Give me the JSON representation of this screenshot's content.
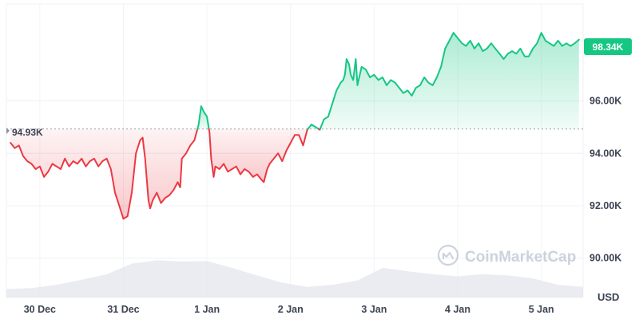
{
  "chart_data": {
    "type": "area",
    "title": "",
    "xlabel": "",
    "ylabel": "",
    "currency": "USD",
    "baseline": 94930,
    "baseline_label": "94.93K",
    "current_label": "98.34K",
    "ylim": [
      88500,
      99700
    ],
    "grid": true,
    "y_ticks": [
      {
        "value": 96000,
        "label": "96.00K"
      },
      {
        "value": 94000,
        "label": "94.00K"
      },
      {
        "value": 92000,
        "label": "92.00K"
      },
      {
        "value": 90000,
        "label": "90.00K"
      }
    ],
    "x_ticks": [
      {
        "t": 0.4,
        "label": "30 Dec"
      },
      {
        "t": 1.4,
        "label": "31 Dec"
      },
      {
        "t": 2.4,
        "label": "1 Jan"
      },
      {
        "t": 3.4,
        "label": "2 Jan"
      },
      {
        "t": 4.4,
        "label": "3 Jan"
      },
      {
        "t": 5.4,
        "label": "4 Jan"
      },
      {
        "t": 6.4,
        "label": "5 Jan"
      }
    ],
    "x_range": [
      0,
      6.9
    ],
    "series": [
      {
        "points": [
          [
            0.05,
            94400
          ],
          [
            0.1,
            94200
          ],
          [
            0.15,
            94300
          ],
          [
            0.2,
            93900
          ],
          [
            0.25,
            93700
          ],
          [
            0.3,
            93600
          ],
          [
            0.35,
            93400
          ],
          [
            0.4,
            93500
          ],
          [
            0.45,
            93100
          ],
          [
            0.5,
            93300
          ],
          [
            0.55,
            93600
          ],
          [
            0.6,
            93500
          ],
          [
            0.65,
            93400
          ],
          [
            0.7,
            93800
          ],
          [
            0.75,
            93500
          ],
          [
            0.8,
            93700
          ],
          [
            0.85,
            93600
          ],
          [
            0.9,
            93800
          ],
          [
            0.95,
            93500
          ],
          [
            1.0,
            93700
          ],
          [
            1.05,
            93800
          ],
          [
            1.1,
            93500
          ],
          [
            1.15,
            93700
          ],
          [
            1.2,
            93800
          ],
          [
            1.25,
            93400
          ],
          [
            1.3,
            92500
          ],
          [
            1.35,
            92000
          ],
          [
            1.4,
            91500
          ],
          [
            1.45,
            91600
          ],
          [
            1.5,
            92500
          ],
          [
            1.55,
            94000
          ],
          [
            1.6,
            94500
          ],
          [
            1.63,
            94600
          ],
          [
            1.66,
            93800
          ],
          [
            1.7,
            92200
          ],
          [
            1.72,
            91900
          ],
          [
            1.75,
            92200
          ],
          [
            1.8,
            92500
          ],
          [
            1.85,
            92100
          ],
          [
            1.9,
            92300
          ],
          [
            1.95,
            92400
          ],
          [
            2.0,
            92600
          ],
          [
            2.05,
            92900
          ],
          [
            2.08,
            92700
          ],
          [
            2.1,
            93800
          ],
          [
            2.15,
            94000
          ],
          [
            2.2,
            94300
          ],
          [
            2.25,
            94500
          ],
          [
            2.3,
            95100
          ],
          [
            2.33,
            95800
          ],
          [
            2.36,
            95600
          ],
          [
            2.4,
            95400
          ],
          [
            2.43,
            94800
          ],
          [
            2.45,
            93800
          ],
          [
            2.48,
            93100
          ],
          [
            2.5,
            93500
          ],
          [
            2.55,
            93400
          ],
          [
            2.6,
            93600
          ],
          [
            2.65,
            93300
          ],
          [
            2.7,
            93400
          ],
          [
            2.75,
            93500
          ],
          [
            2.8,
            93200
          ],
          [
            2.85,
            93400
          ],
          [
            2.9,
            93300
          ],
          [
            2.95,
            93100
          ],
          [
            3.0,
            93200
          ],
          [
            3.05,
            93000
          ],
          [
            3.08,
            92900
          ],
          [
            3.12,
            93400
          ],
          [
            3.15,
            93600
          ],
          [
            3.2,
            93800
          ],
          [
            3.25,
            94000
          ],
          [
            3.3,
            93700
          ],
          [
            3.35,
            94100
          ],
          [
            3.4,
            94400
          ],
          [
            3.45,
            94700
          ],
          [
            3.5,
            94700
          ],
          [
            3.55,
            94300
          ],
          [
            3.6,
            94900
          ],
          [
            3.65,
            95100
          ],
          [
            3.7,
            95000
          ],
          [
            3.75,
            94900
          ],
          [
            3.8,
            95300
          ],
          [
            3.85,
            95400
          ],
          [
            3.9,
            95900
          ],
          [
            3.95,
            96400
          ],
          [
            4.0,
            96700
          ],
          [
            4.03,
            96800
          ],
          [
            4.05,
            97000
          ],
          [
            4.07,
            97600
          ],
          [
            4.1,
            97400
          ],
          [
            4.12,
            97000
          ],
          [
            4.15,
            96800
          ],
          [
            4.18,
            97600
          ],
          [
            4.2,
            96600
          ],
          [
            4.25,
            97300
          ],
          [
            4.3,
            97200
          ],
          [
            4.35,
            96900
          ],
          [
            4.4,
            97000
          ],
          [
            4.45,
            96800
          ],
          [
            4.5,
            96900
          ],
          [
            4.55,
            96600
          ],
          [
            4.6,
            96800
          ],
          [
            4.65,
            96700
          ],
          [
            4.7,
            96500
          ],
          [
            4.75,
            96300
          ],
          [
            4.8,
            96400
          ],
          [
            4.85,
            96200
          ],
          [
            4.9,
            96500
          ],
          [
            4.95,
            96600
          ],
          [
            5.0,
            96900
          ],
          [
            5.05,
            96700
          ],
          [
            5.1,
            96600
          ],
          [
            5.15,
            96900
          ],
          [
            5.2,
            97300
          ],
          [
            5.25,
            98000
          ],
          [
            5.3,
            98300
          ],
          [
            5.35,
            98600
          ],
          [
            5.4,
            98400
          ],
          [
            5.45,
            98200
          ],
          [
            5.5,
            98100
          ],
          [
            5.55,
            98300
          ],
          [
            5.6,
            98000
          ],
          [
            5.65,
            98200
          ],
          [
            5.7,
            97900
          ],
          [
            5.75,
            98000
          ],
          [
            5.8,
            98200
          ],
          [
            5.85,
            98000
          ],
          [
            5.9,
            97800
          ],
          [
            5.95,
            97600
          ],
          [
            6.0,
            97800
          ],
          [
            6.05,
            97900
          ],
          [
            6.1,
            97800
          ],
          [
            6.15,
            98000
          ],
          [
            6.2,
            97700
          ],
          [
            6.25,
            97700
          ],
          [
            6.3,
            98000
          ],
          [
            6.35,
            98200
          ],
          [
            6.4,
            98600
          ],
          [
            6.45,
            98300
          ],
          [
            6.5,
            98200
          ],
          [
            6.55,
            98100
          ],
          [
            6.6,
            98300
          ],
          [
            6.65,
            98100
          ],
          [
            6.7,
            98200
          ],
          [
            6.75,
            98100
          ],
          [
            6.8,
            98200
          ],
          [
            6.85,
            98340
          ]
        ]
      }
    ],
    "volume": {
      "scale_max": 100,
      "points": [
        [
          0.0,
          20
        ],
        [
          0.3,
          22
        ],
        [
          0.6,
          30
        ],
        [
          0.9,
          42
        ],
        [
          1.2,
          55
        ],
        [
          1.5,
          80
        ],
        [
          1.8,
          88
        ],
        [
          2.1,
          85
        ],
        [
          2.4,
          86
        ],
        [
          2.7,
          70
        ],
        [
          3.0,
          52
        ],
        [
          3.3,
          35
        ],
        [
          3.6,
          25
        ],
        [
          3.9,
          30
        ],
        [
          4.2,
          40
        ],
        [
          4.5,
          70
        ],
        [
          4.8,
          62
        ],
        [
          5.1,
          55
        ],
        [
          5.4,
          50
        ],
        [
          5.7,
          55
        ],
        [
          6.0,
          52
        ],
        [
          6.3,
          45
        ],
        [
          6.6,
          30
        ],
        [
          6.9,
          25
        ]
      ]
    }
  },
  "axis": {
    "unit_label": "USD"
  },
  "watermark": {
    "text": "CoinMarketCap"
  }
}
